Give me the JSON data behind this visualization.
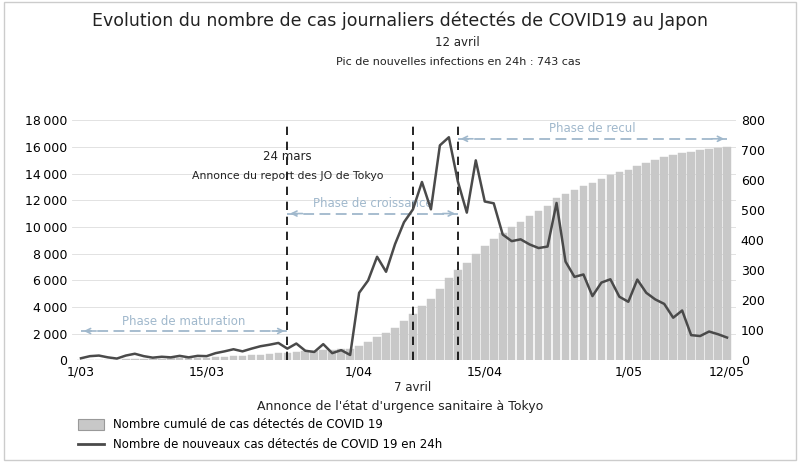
{
  "title": "Evolution du nombre de cas journaliers détectés de COVID19 au Japon",
  "background_color": "#ffffff",
  "bar_color": "#c8c8c8",
  "bar_edge_color": "#b0b0b0",
  "line_color": "#4a4a4a",
  "arrow_color": "#a0b8cc",
  "dashed_line_color": "#000000",
  "x_tick_labels": [
    "1/03",
    "15/03",
    "1/04",
    "15/04",
    "1/05",
    "12/05"
  ],
  "x_tick_positions": [
    0,
    14,
    31,
    45,
    61,
    72
  ],
  "ylim_left": [
    0,
    18000
  ],
  "ylim_right": [
    0,
    800
  ],
  "yticks_left": [
    0,
    2000,
    4000,
    6000,
    8000,
    10000,
    12000,
    14000,
    16000,
    18000
  ],
  "yticks_right": [
    0,
    100,
    200,
    300,
    400,
    500,
    600,
    700,
    800
  ],
  "day_24mars": 23,
  "day_7avril": 37,
  "day_12avril": 42,
  "n_days": 73,
  "daily_new": [
    7,
    14,
    16,
    10,
    6,
    16,
    22,
    14,
    9,
    12,
    10,
    15,
    10,
    15,
    14,
    24,
    30,
    37,
    30,
    39,
    47,
    52,
    58,
    39,
    56,
    32,
    28,
    54,
    24,
    34,
    18,
    225,
    266,
    345,
    295,
    387,
    460,
    503,
    594,
    503,
    716,
    743,
    596,
    492,
    666,
    529,
    523,
    419,
    397,
    403,
    386,
    374,
    379,
    524,
    329,
    278,
    286,
    214,
    259,
    270,
    212,
    195,
    269,
    225,
    203,
    188,
    142,
    166,
    84,
    81,
    96,
    87,
    76
  ],
  "cumulative_scale_target": 16000,
  "legend_bar": "Nombre cumulé de cas détectés de COVID 19",
  "legend_line": "Nombre de nouveaux cas détectés de COVID 19 en 24h",
  "ann_24mars_text1": "24 mars",
  "ann_24mars_text2": "Annonce du report des JO de Tokyo",
  "ann_7avril_text": "7 avril",
  "ann_7avril_sub": "Annonce de l'état d'urgence sanitaire à Tokyo",
  "ann_12avril_text1": "12 avril",
  "ann_12avril_text2": "Pic de nouvelles infections en 24h : 743 cas",
  "phase_maturation_label": "Phase de maturation",
  "phase_croissance_label": "Phase de croissance",
  "phase_recul_label": "Phase de recul"
}
